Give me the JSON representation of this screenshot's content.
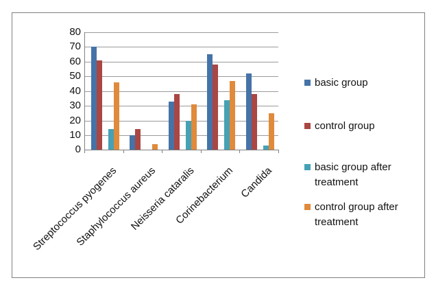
{
  "chart_data": {
    "type": "bar",
    "title": "",
    "categories": [
      "Streptococcus pyogenes",
      "Staphylococcus aureus",
      "Neisseria cataralis",
      "Corinebacterium",
      "Candida"
    ],
    "series": [
      {
        "name": "basic group",
        "color": "#4573A7",
        "values": [
          70,
          10,
          33,
          65,
          52
        ]
      },
      {
        "name": "control group",
        "color": "#AA4643",
        "values": [
          61,
          14,
          38,
          58,
          38
        ]
      },
      {
        "name": "basic group after treatment",
        "color": "#45A1B5",
        "values": [
          14,
          0,
          20,
          34,
          3
        ]
      },
      {
        "name": "control group after treatment",
        "color": "#E08A3C",
        "values": [
          46,
          4,
          31,
          47,
          25
        ]
      }
    ],
    "ylim": [
      0,
      80
    ],
    "ytick_step": 10,
    "yticks": [
      0,
      10,
      20,
      30,
      40,
      50,
      60,
      70,
      80
    ],
    "grid": true,
    "legend_position": "right",
    "xlabel": "",
    "ylabel": ""
  },
  "colors": {
    "background": "#FFFFFF",
    "border": "#7F7F7F",
    "gridline": "#9A9A9A",
    "axis": "#7F7F7F",
    "text": "#111111"
  }
}
